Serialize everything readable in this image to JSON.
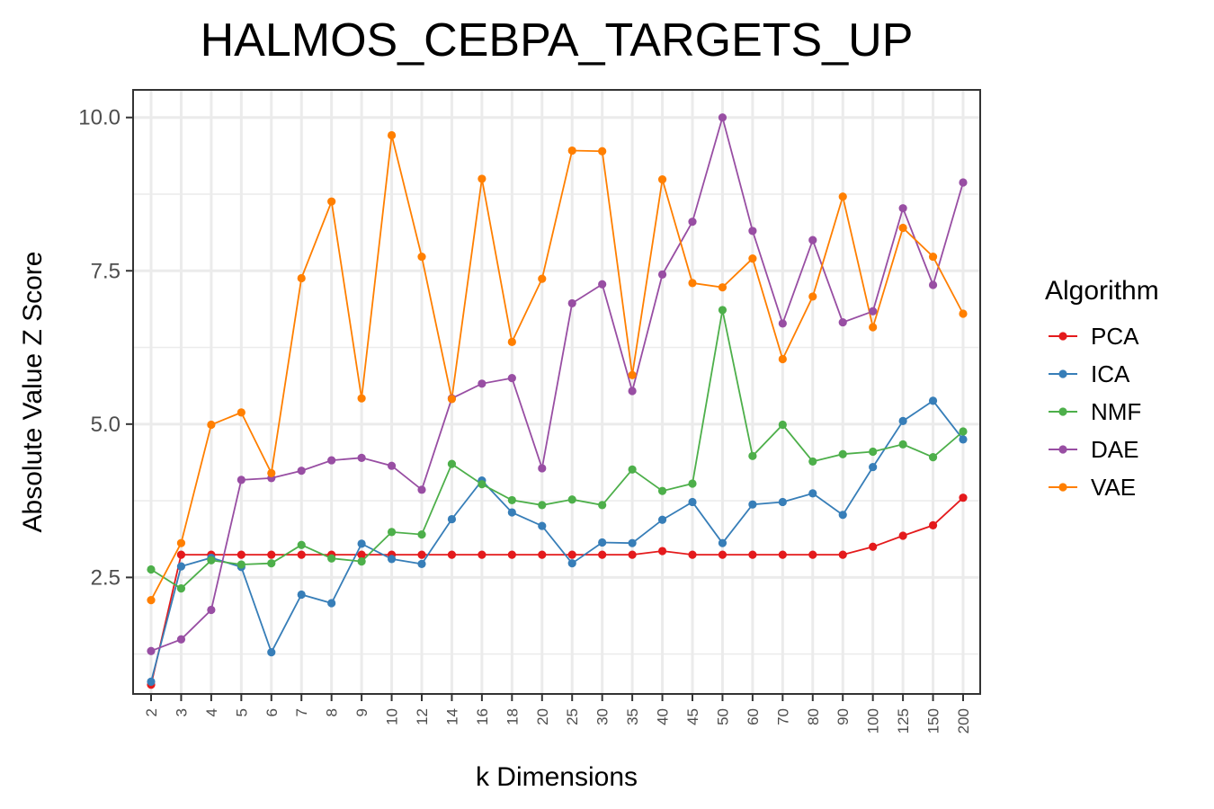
{
  "chart_data": {
    "type": "line",
    "title": "HALMOS_CEBPA_TARGETS_UP",
    "xlabel": "k Dimensions",
    "ylabel": "Absolute Value Z Score",
    "categories": [
      "2",
      "3",
      "4",
      "5",
      "6",
      "7",
      "8",
      "9",
      "10",
      "12",
      "14",
      "16",
      "18",
      "20",
      "25",
      "30",
      "35",
      "40",
      "45",
      "50",
      "60",
      "70",
      "80",
      "90",
      "100",
      "125",
      "150",
      "200"
    ],
    "y_ticks": [
      "2.5",
      "5.0",
      "7.5",
      "10.0"
    ],
    "ylim": [
      0.6,
      10.45
    ],
    "grid": true,
    "legend": {
      "title": "Algorithm",
      "position": "right"
    },
    "series": [
      {
        "name": "PCA",
        "color": "#e41a1c",
        "values": [
          0.75,
          2.87,
          2.87,
          2.87,
          2.87,
          2.87,
          2.87,
          2.87,
          2.87,
          2.87,
          2.87,
          2.87,
          2.87,
          2.87,
          2.87,
          2.87,
          2.87,
          2.93,
          2.87,
          2.87,
          2.87,
          2.87,
          2.87,
          2.87,
          3.0,
          3.18,
          3.35,
          3.8
        ]
      },
      {
        "name": "ICA",
        "color": "#377eb8",
        "values": [
          0.8,
          2.68,
          2.82,
          2.67,
          1.28,
          2.22,
          2.08,
          3.05,
          2.8,
          2.72,
          3.45,
          4.08,
          3.56,
          3.34,
          2.73,
          3.07,
          3.06,
          3.44,
          3.73,
          3.06,
          3.69,
          3.73,
          3.87,
          3.52,
          4.3,
          5.05,
          5.38,
          4.75
        ]
      },
      {
        "name": "NMF",
        "color": "#4daf4a",
        "values": [
          2.63,
          2.32,
          2.78,
          2.71,
          2.73,
          3.03,
          2.81,
          2.76,
          3.24,
          3.2,
          4.35,
          4.02,
          3.76,
          3.68,
          3.77,
          3.68,
          4.26,
          3.91,
          4.03,
          6.86,
          4.48,
          4.99,
          4.39,
          4.51,
          4.55,
          4.67,
          4.46,
          4.88
        ]
      },
      {
        "name": "DAE",
        "color": "#984ea3",
        "values": [
          1.3,
          1.49,
          1.97,
          4.09,
          4.12,
          4.24,
          4.41,
          4.45,
          4.32,
          3.93,
          5.42,
          5.66,
          5.75,
          4.28,
          6.97,
          7.28,
          5.54,
          7.44,
          8.3,
          10.0,
          8.15,
          6.64,
          8.0,
          6.66,
          6.84,
          8.52,
          7.27,
          8.94
        ]
      },
      {
        "name": "VAE",
        "color": "#ff7f00",
        "values": [
          2.13,
          3.06,
          4.99,
          5.19,
          4.2,
          7.38,
          8.63,
          5.42,
          9.71,
          7.73,
          5.41,
          9.0,
          6.34,
          7.37,
          9.46,
          9.45,
          5.8,
          8.99,
          7.3,
          7.23,
          7.7,
          6.06,
          7.08,
          8.71,
          6.58,
          8.2,
          7.73,
          6.8
        ]
      }
    ]
  }
}
